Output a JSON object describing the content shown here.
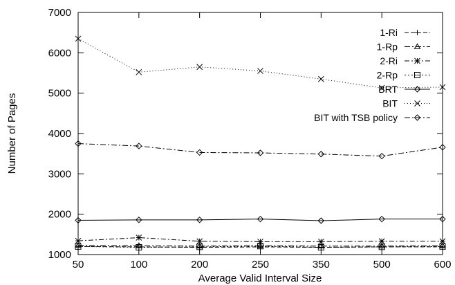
{
  "chart_data": {
    "type": "line",
    "title": "",
    "xlabel": "Average Valid Interval Size",
    "ylabel": "Number of Pages",
    "categories": [
      "50",
      "100",
      "200",
      "250",
      "350",
      "500",
      "600"
    ],
    "ylim": [
      1000,
      7000
    ],
    "yticks": [
      1000,
      2000,
      3000,
      4000,
      5000,
      6000,
      7000
    ],
    "grid": false,
    "legend_position": "top-right",
    "series": [
      {
        "name": "1-Ri",
        "marker": "plus",
        "dash": "6,3",
        "values": [
          1200,
          1190,
          1180,
          1190,
          1180,
          1190,
          1190
        ]
      },
      {
        "name": "1-Rp",
        "marker": "triangle",
        "dash": "8,3,2,3",
        "values": [
          1230,
          1220,
          1210,
          1220,
          1210,
          1210,
          1220
        ]
      },
      {
        "name": "2-Ri",
        "marker": "asterisk",
        "dash": "7,3,2,3",
        "values": [
          1340,
          1420,
          1330,
          1320,
          1320,
          1330,
          1330
        ]
      },
      {
        "name": "2-Rp",
        "marker": "square",
        "dash": "2,3",
        "values": [
          1200,
          1180,
          1190,
          1210,
          1180,
          1190,
          1200
        ]
      },
      {
        "name": "BRT",
        "marker": "diamond",
        "dash": "",
        "values": [
          1850,
          1860,
          1860,
          1880,
          1840,
          1880,
          1880
        ]
      },
      {
        "name": "BIT",
        "marker": "x",
        "dash": "1,3",
        "values": [
          6350,
          5520,
          5650,
          5550,
          5350,
          5130,
          5150
        ]
      },
      {
        "name": "BIT with TSB policy",
        "marker": "diamond",
        "dash": "8,3,2,3",
        "values": [
          3750,
          3690,
          3530,
          3520,
          3490,
          3440,
          3660
        ]
      }
    ]
  }
}
